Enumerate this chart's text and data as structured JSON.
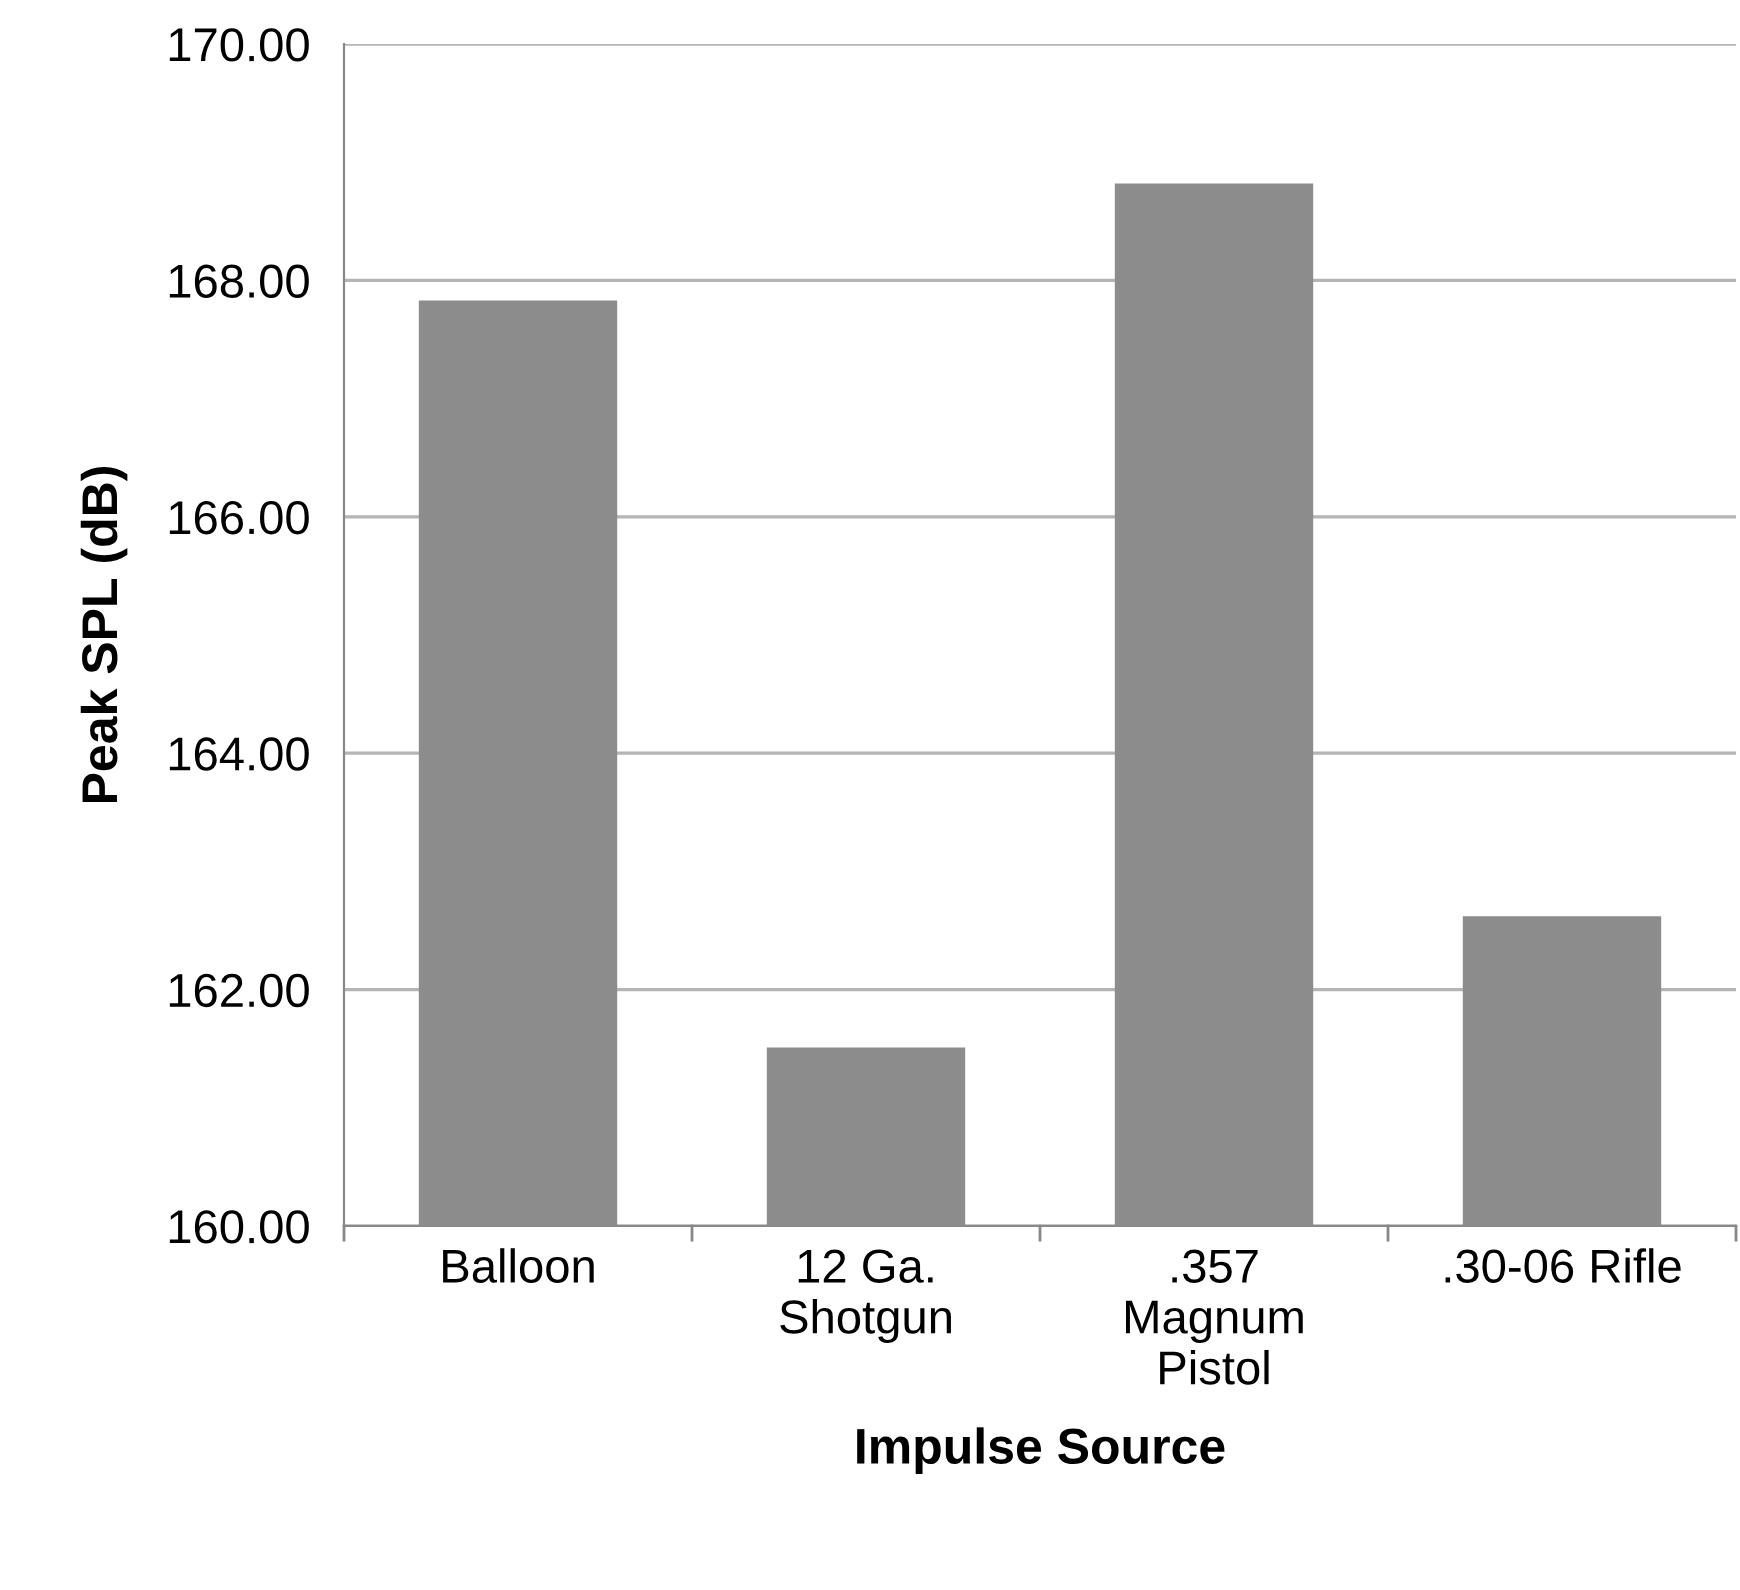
{
  "chart_data": {
    "type": "bar",
    "xlabel": "Impulse Source",
    "ylabel": "Peak SPL (dB)",
    "categories": [
      "Balloon",
      "12 Ga.\nShotgun",
      ".357\nMagnum\nPistol",
      ".30-06 Rifle"
    ],
    "values": [
      167.83,
      161.51,
      168.82,
      162.62
    ],
    "color": "#8c8c8c",
    "ylim": [
      160,
      170
    ],
    "yticks": [
      {
        "value": 160,
        "label": "160.00"
      },
      {
        "value": 162,
        "label": "162.00"
      },
      {
        "value": 164,
        "label": "164.00"
      },
      {
        "value": 166,
        "label": "166.00"
      },
      {
        "value": 168,
        "label": "168.00"
      },
      {
        "value": 170,
        "label": "170.00"
      }
    ],
    "grid": "y"
  }
}
